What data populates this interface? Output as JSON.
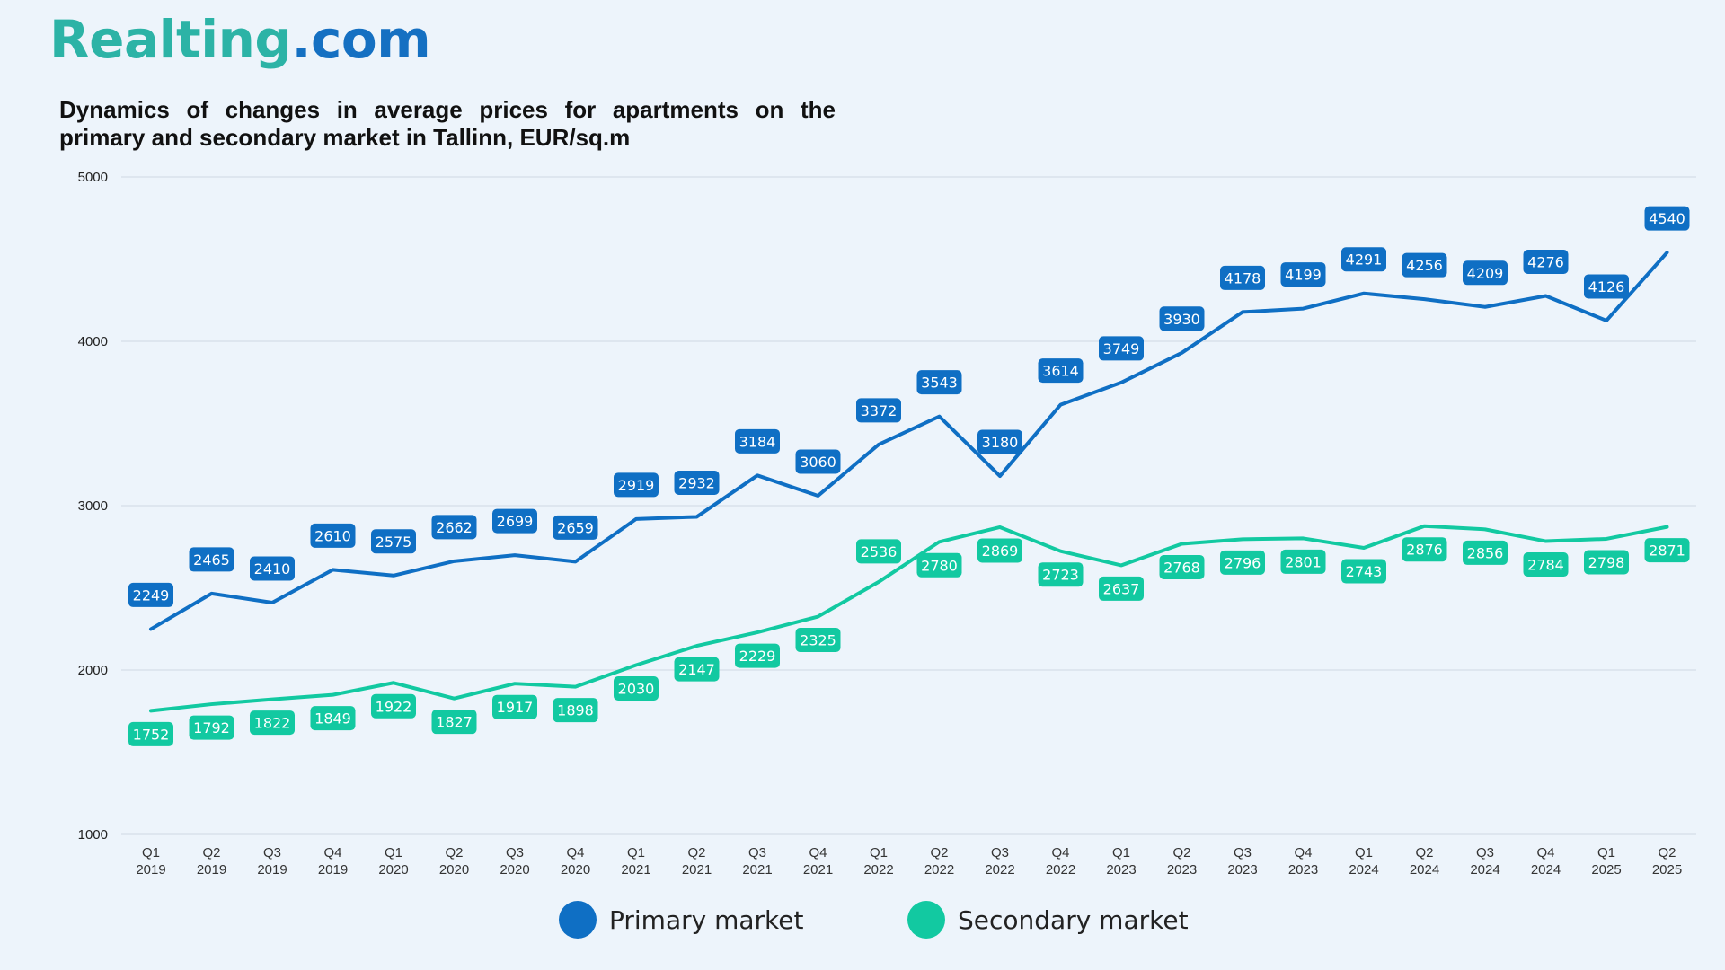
{
  "brand": {
    "name_part1": "Realting",
    "name_part2": ".com"
  },
  "colors": {
    "primary": "#0f6fc4",
    "secondary": "#12c9a1",
    "grid": "#d6dee8",
    "background": "#edf4fb"
  },
  "chart_data": {
    "type": "line",
    "title": "Dynamics of changes in average prices for apartments on the primary and secondary market in Tallinn, EUR/sq.m",
    "xlabel": "",
    "ylabel": "",
    "ylim": [
      1000,
      5000
    ],
    "yticks": [
      "1000",
      "2000",
      "3000",
      "4000",
      "5000"
    ],
    "grid": true,
    "legend_position": "bottom-center",
    "categories": [
      [
        "Q1",
        "2019"
      ],
      [
        "Q2",
        "2019"
      ],
      [
        "Q3",
        "2019"
      ],
      [
        "Q4",
        "2019"
      ],
      [
        "Q1",
        "2020"
      ],
      [
        "Q2",
        "2020"
      ],
      [
        "Q3",
        "2020"
      ],
      [
        "Q4",
        "2020"
      ],
      [
        "Q1",
        "2021"
      ],
      [
        "Q2",
        "2021"
      ],
      [
        "Q3",
        "2021"
      ],
      [
        "Q4",
        "2021"
      ],
      [
        "Q1",
        "2022"
      ],
      [
        "Q2",
        "2022"
      ],
      [
        "Q3",
        "2022"
      ],
      [
        "Q4",
        "2022"
      ],
      [
        "Q1",
        "2023"
      ],
      [
        "Q2",
        "2023"
      ],
      [
        "Q3",
        "2023"
      ],
      [
        "Q4",
        "2023"
      ],
      [
        "Q1",
        "2024"
      ],
      [
        "Q2",
        "2024"
      ],
      [
        "Q3",
        "2024"
      ],
      [
        "Q4",
        "2024"
      ],
      [
        "Q1",
        "2025"
      ],
      [
        "Q2",
        "2025"
      ]
    ],
    "series": [
      {
        "name": "Primary market",
        "color": "#0f6fc4",
        "values": [
          2249,
          2465,
          2410,
          2610,
          2575,
          2662,
          2699,
          2659,
          2919,
          2932,
          3184,
          3060,
          3372,
          3543,
          3180,
          3614,
          3749,
          3930,
          4178,
          4199,
          4291,
          4256,
          4209,
          4276,
          4126,
          4540
        ]
      },
      {
        "name": "Secondary market",
        "color": "#12c9a1",
        "values": [
          1752,
          1792,
          1822,
          1849,
          1922,
          1827,
          1917,
          1898,
          2030,
          2147,
          2229,
          2325,
          2536,
          2780,
          2869,
          2723,
          2637,
          2768,
          2796,
          2801,
          2743,
          2876,
          2856,
          2784,
          2798,
          2871
        ]
      }
    ]
  }
}
